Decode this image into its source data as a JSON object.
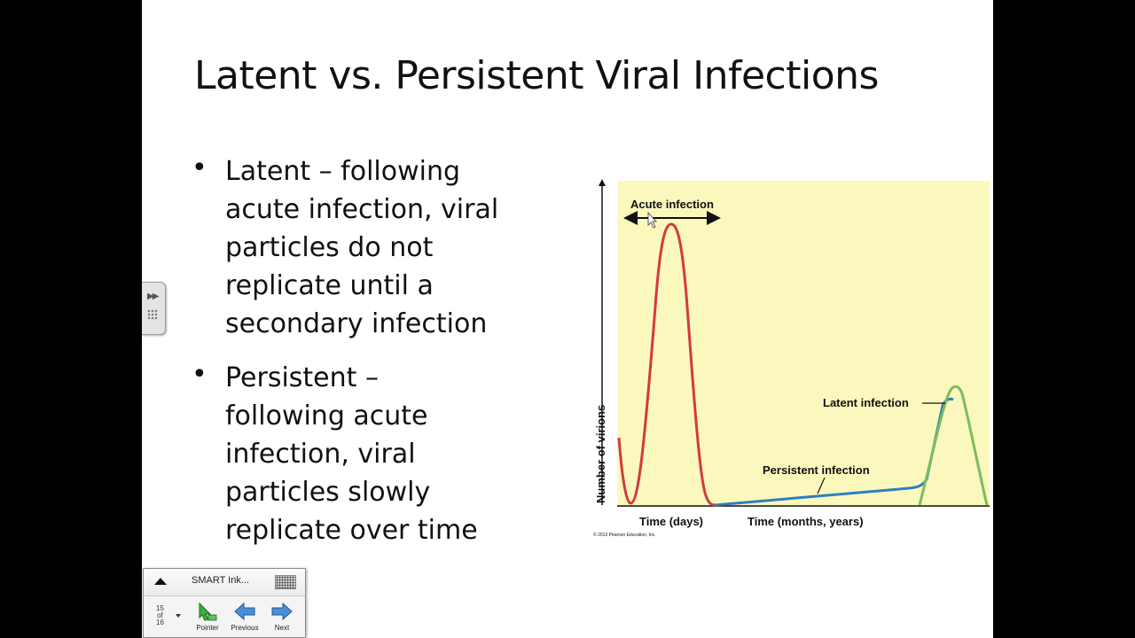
{
  "slide": {
    "title": "Latent vs. Persistent Viral Infections",
    "bullets": [
      {
        "symbol": "•",
        "lines": [
          "Latent – following",
          "acute infection, viral",
          "particles do not",
          "replicate until a",
          "secondary infection"
        ]
      },
      {
        "symbol": "•",
        "lines": [
          "Persistent –",
          "following acute",
          "infection, viral",
          "particles slowly",
          "replicate over time"
        ]
      }
    ]
  },
  "figure": {
    "background_color": "#fbf8bd",
    "acute_label": "Acute infection",
    "latent_label": "Latent infection",
    "persistent_label": "Persistent infection",
    "y_axis_label": "Number of virions",
    "x_label_days": "Time (days)",
    "x_label_long": "Time (months, years)",
    "copyright": "© 2013 Pearson Education, Inc.",
    "colors": {
      "acute": "#d23a3f",
      "latent": "#7dbb5e",
      "persistent": "#2c7fc1"
    }
  },
  "toolbar": {
    "title": "SMART Ink...",
    "page_current": "15",
    "page_of": "of",
    "page_total": "16",
    "tools": [
      {
        "icon": "pointer-icon",
        "label": "Pointer"
      },
      {
        "icon": "previous-arrow-icon",
        "label": "Previous"
      },
      {
        "icon": "next-arrow-icon",
        "label": "Next"
      }
    ]
  }
}
